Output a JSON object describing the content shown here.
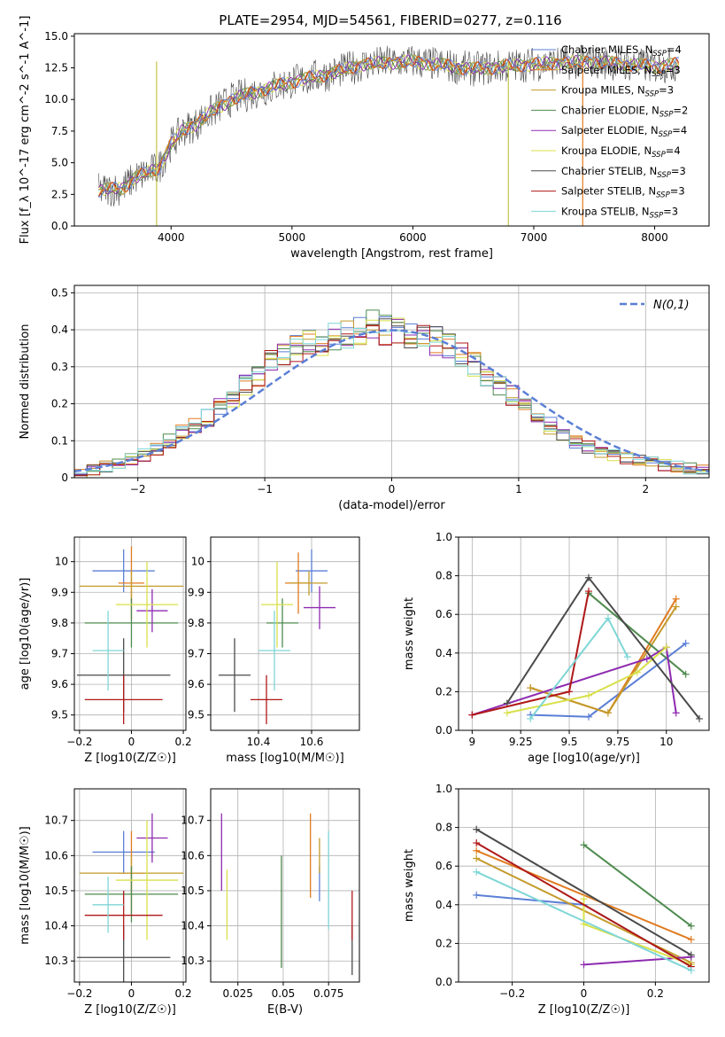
{
  "figure_title": "PLATE=2954, MJD=54561, FIBERID=0277, z=0.116",
  "series_names": [
    "Chabrier MILES, N_SSP=4",
    "Salpeter MILES, N_SSP=3",
    "Kroupa MILES, N_SSP=3",
    "Chabrier ELODIE, N_SSP=2",
    "Salpeter ELODIE, N_SSP=4",
    "Kroupa ELODIE, N_SSP=4",
    "Chabrier STELIB, N_SSP=3",
    "Salpeter STELIB, N_SSP=3",
    "Kroupa STELIB, N_SSP=3"
  ],
  "colors": [
    "#5b7fd6",
    "#e07b20",
    "#c49a2a",
    "#4e8b4e",
    "#8e2bb0",
    "#d8e04a",
    "#4a4a4a",
    "#b01818",
    "#7fd6d6"
  ],
  "chart_data": [
    {
      "type": "line",
      "title": "PLATE=2954, MJD=54561, FIBERID=0277, z=0.116",
      "xlabel": "wavelength [Angstrom, rest frame]",
      "ylabel": "Flux [f_λ 10^-17 erg cm^-2 s^-1 A^-1]",
      "xlim": [
        3200,
        8450
      ],
      "ylim": [
        0,
        15.2
      ],
      "xticks": [
        4000,
        5000,
        6000,
        7000,
        8000
      ],
      "yticks": [
        0.0,
        2.5,
        5.0,
        7.5,
        10.0,
        12.5,
        15.0
      ],
      "legend": "upper right",
      "spectrum_trend_x": [
        3400,
        3600,
        3700,
        3800,
        3900,
        4000,
        4100,
        4200,
        4300,
        4500,
        4700,
        5000,
        5300,
        5600,
        6000,
        6500,
        7000,
        7500,
        8000,
        8200
      ],
      "spectrum_trend_y": [
        2.8,
        3.0,
        3.8,
        4.2,
        4.6,
        6.5,
        7.6,
        8.0,
        8.8,
        10.0,
        10.6,
        11.4,
        12.0,
        12.8,
        13.0,
        12.4,
        12.8,
        13.0,
        12.6,
        12.8
      ]
    },
    {
      "type": "step",
      "xlabel": "(data-model)/error",
      "ylabel": "Normed distribution",
      "xlim": [
        -2.5,
        2.5
      ],
      "ylim": [
        0,
        0.52
      ],
      "xticks": [
        -2,
        -1,
        0,
        1,
        2
      ],
      "yticks": [
        0.0,
        0.1,
        0.2,
        0.3,
        0.4,
        0.5
      ],
      "grid": true,
      "legend": "upper right",
      "reference_label": "N(0,1)",
      "bins": [
        -2.5,
        2.5,
        50
      ],
      "histogram_shape": [
        0.01,
        0.02,
        0.03,
        0.04,
        0.05,
        0.06,
        0.08,
        0.1,
        0.12,
        0.14,
        0.16,
        0.19,
        0.22,
        0.25,
        0.28,
        0.31,
        0.33,
        0.35,
        0.36,
        0.37,
        0.38,
        0.39,
        0.4,
        0.42,
        0.4,
        0.4,
        0.39,
        0.38,
        0.37,
        0.35,
        0.33,
        0.31,
        0.28,
        0.25,
        0.22,
        0.19,
        0.16,
        0.14,
        0.12,
        0.1,
        0.08,
        0.07,
        0.06,
        0.05,
        0.045,
        0.04,
        0.035,
        0.03,
        0.025,
        0.02
      ]
    },
    {
      "type": "scatter",
      "xlabel": "Z [log10(Z/Z☉)]",
      "ylabel": "age [log10(age/yr)]",
      "xlim": [
        -0.22,
        0.21
      ],
      "ylim": [
        9.45,
        10.08
      ],
      "xticks": [
        -0.2,
        0.0,
        0.2
      ],
      "yticks": [
        9.5,
        9.6,
        9.7,
        9.8,
        9.9,
        10.0
      ],
      "grid": true,
      "points": [
        {
          "s": 0,
          "x": -0.03,
          "xerr": 0.12,
          "y": 9.97,
          "yerr": 0.07
        },
        {
          "s": 1,
          "x": 0.0,
          "xerr": 0.05,
          "y": 9.93,
          "yerr": 0.12
        },
        {
          "s": 2,
          "x": 0.0,
          "xerr": 0.2,
          "y": 9.92,
          "yerr": 0.05
        },
        {
          "s": 3,
          "x": 0.0,
          "xerr": 0.18,
          "y": 9.8,
          "yerr": 0.08
        },
        {
          "s": 4,
          "x": 0.08,
          "xerr": 0.06,
          "y": 9.84,
          "yerr": 0.07
        },
        {
          "s": 5,
          "x": 0.06,
          "xerr": 0.12,
          "y": 9.86,
          "yerr": 0.14
        },
        {
          "s": 6,
          "x": -0.03,
          "xerr": 0.18,
          "y": 9.63,
          "yerr": 0.12
        },
        {
          "s": 7,
          "x": -0.03,
          "xerr": 0.15,
          "y": 9.55,
          "yerr": 0.08
        },
        {
          "s": 8,
          "x": -0.09,
          "xerr": 0.06,
          "y": 9.71,
          "yerr": 0.13
        }
      ]
    },
    {
      "type": "scatter",
      "xlabel": "mass [log10(M/M☉)]",
      "ylabel": "",
      "xlim": [
        10.22,
        10.78
      ],
      "ylim": [
        9.45,
        10.08
      ],
      "xticks": [
        10.4,
        10.6
      ],
      "yticks": [
        9.5,
        9.6,
        9.7,
        9.8,
        9.9,
        10.0
      ],
      "grid": true,
      "points": [
        {
          "s": 0,
          "x": 10.6,
          "xerr": 0.06,
          "y": 9.97,
          "yerr": 0.07
        },
        {
          "s": 1,
          "x": 10.55,
          "xerr": 0.05,
          "y": 9.93,
          "yerr": 0.1
        },
        {
          "s": 2,
          "x": 10.59,
          "xerr": 0.07,
          "y": 9.93,
          "yerr": 0.04
        },
        {
          "s": 3,
          "x": 10.49,
          "xerr": 0.06,
          "y": 9.8,
          "yerr": 0.08
        },
        {
          "s": 4,
          "x": 10.63,
          "xerr": 0.06,
          "y": 9.85,
          "yerr": 0.07
        },
        {
          "s": 5,
          "x": 10.47,
          "xerr": 0.06,
          "y": 9.86,
          "yerr": 0.14
        },
        {
          "s": 6,
          "x": 10.31,
          "xerr": 0.06,
          "y": 9.63,
          "yerr": 0.12
        },
        {
          "s": 7,
          "x": 10.43,
          "xerr": 0.06,
          "y": 9.55,
          "yerr": 0.08
        },
        {
          "s": 8,
          "x": 10.46,
          "xerr": 0.06,
          "y": 9.71,
          "yerr": 0.13
        }
      ]
    },
    {
      "type": "line",
      "xlabel": "age [log10(age/yr)]",
      "ylabel": "mass weight",
      "xlim": [
        8.93,
        10.22
      ],
      "ylim": [
        0,
        1
      ],
      "xticks": [
        9.0,
        9.25,
        9.5,
        9.75,
        10.0
      ],
      "yticks": [
        0.0,
        0.2,
        0.4,
        0.6,
        0.8,
        1.0
      ],
      "grid": true,
      "series": [
        {
          "s": 0,
          "x": [
            9.3,
            9.6,
            10.1
          ],
          "y": [
            0.08,
            0.07,
            0.45
          ]
        },
        {
          "s": 1,
          "x": [
            9.3,
            9.7,
            10.05
          ],
          "y": [
            0.22,
            0.09,
            0.68
          ]
        },
        {
          "s": 2,
          "x": [
            9.3,
            9.7,
            10.05
          ],
          "y": [
            0.22,
            0.09,
            0.64
          ]
        },
        {
          "s": 3,
          "x": [
            9.6,
            10.1
          ],
          "y": [
            0.71,
            0.29
          ]
        },
        {
          "s": 4,
          "x": [
            9.0,
            9.9,
            10.0,
            10.05
          ],
          "y": [
            0.08,
            0.37,
            0.43,
            0.09
          ]
        },
        {
          "s": 5,
          "x": [
            9.18,
            9.6,
            9.85,
            10.0
          ],
          "y": [
            0.09,
            0.18,
            0.3,
            0.43
          ]
        },
        {
          "s": 6,
          "x": [
            9.18,
            9.6,
            10.17
          ],
          "y": [
            0.14,
            0.79,
            0.06
          ]
        },
        {
          "s": 7,
          "x": [
            9.0,
            9.5,
            9.6
          ],
          "y": [
            0.08,
            0.2,
            0.72
          ]
        },
        {
          "s": 8,
          "x": [
            9.3,
            9.7,
            9.8
          ],
          "y": [
            0.06,
            0.58,
            0.38
          ]
        }
      ]
    },
    {
      "type": "scatter",
      "xlabel": "Z [log10(Z/Z☉)]",
      "ylabel": "mass [log10(M/M☉)]",
      "xlim": [
        -0.22,
        0.21
      ],
      "ylim": [
        10.24,
        10.79
      ],
      "xticks": [
        -0.2,
        0.0,
        0.2
      ],
      "yticks": [
        10.3,
        10.4,
        10.5,
        10.6,
        10.7
      ],
      "grid": true,
      "points": [
        {
          "s": 0,
          "x": -0.03,
          "xerr": 0.12,
          "y": 10.61,
          "yerr": 0.06
        },
        {
          "s": 1,
          "x": 0.0,
          "xerr": 0.05,
          "y": 10.55,
          "yerr": 0.12
        },
        {
          "s": 2,
          "x": 0.0,
          "xerr": 0.2,
          "y": 10.55,
          "yerr": 0.05
        },
        {
          "s": 3,
          "x": 0.0,
          "xerr": 0.18,
          "y": 10.49,
          "yerr": 0.08
        },
        {
          "s": 4,
          "x": 0.08,
          "xerr": 0.06,
          "y": 10.65,
          "yerr": 0.07
        },
        {
          "s": 5,
          "x": 0.06,
          "xerr": 0.12,
          "y": 10.53,
          "yerr": 0.17
        },
        {
          "s": 6,
          "x": -0.03,
          "xerr": 0.18,
          "y": 10.31,
          "yerr": 0.09
        },
        {
          "s": 7,
          "x": -0.03,
          "xerr": 0.15,
          "y": 10.43,
          "yerr": 0.07
        },
        {
          "s": 8,
          "x": -0.09,
          "xerr": 0.06,
          "y": 10.46,
          "yerr": 0.08
        }
      ]
    },
    {
      "type": "scatter",
      "xlabel": "E(B-V)",
      "ylabel": "",
      "xlim": [
        0.01,
        0.092
      ],
      "ylim": [
        10.24,
        10.79
      ],
      "xticks": [
        0.025,
        0.05,
        0.075
      ],
      "yticks": [
        10.3,
        10.4,
        10.5,
        10.6,
        10.7
      ],
      "grid": true,
      "points": [
        {
          "s": 0,
          "x": 0.07,
          "y": 10.52,
          "yerr": 0.05
        },
        {
          "s": 1,
          "x": 0.065,
          "y": 10.6,
          "yerr": 0.12
        },
        {
          "s": 2,
          "x": 0.07,
          "y": 10.6,
          "yerr": 0.05
        },
        {
          "s": 3,
          "x": 0.049,
          "y": 10.44,
          "yerr": 0.16
        },
        {
          "s": 4,
          "x": 0.016,
          "y": 10.61,
          "yerr": 0.11
        },
        {
          "s": 5,
          "x": 0.019,
          "y": 10.46,
          "yerr": 0.1
        },
        {
          "s": 6,
          "x": 0.088,
          "y": 10.33,
          "yerr": 0.07
        },
        {
          "s": 7,
          "x": 0.088,
          "y": 10.43,
          "yerr": 0.07
        },
        {
          "s": 8,
          "x": 0.075,
          "y": 10.53,
          "yerr": 0.14
        }
      ]
    },
    {
      "type": "line",
      "xlabel": "Z [log10(Z/Z☉)]",
      "ylabel": "mass weight",
      "xlim": [
        -0.35,
        0.35
      ],
      "ylim": [
        0,
        1
      ],
      "xticks": [
        -0.2,
        0.0,
        0.2
      ],
      "yticks": [
        0.0,
        0.2,
        0.4,
        0.6,
        0.8,
        1.0
      ],
      "grid": true,
      "series": [
        {
          "s": 0,
          "x": [
            -0.3,
            0.0,
            0.3
          ],
          "y": [
            0.45,
            0.4,
            0.08
          ]
        },
        {
          "s": 1,
          "x": [
            -0.3,
            0.3
          ],
          "y": [
            0.68,
            0.22
          ]
        },
        {
          "s": 2,
          "x": [
            -0.3,
            0.3
          ],
          "y": [
            0.64,
            0.1
          ]
        },
        {
          "s": 3,
          "x": [
            0.0,
            0.3
          ],
          "y": [
            0.71,
            0.29
          ]
        },
        {
          "s": 4,
          "x": [
            0.0,
            0.3
          ],
          "y": [
            0.09,
            0.13
          ]
        },
        {
          "s": 5,
          "x": [
            0.0,
            0.0,
            0.3
          ],
          "y": [
            0.43,
            0.3,
            0.09
          ]
        },
        {
          "s": 6,
          "x": [
            -0.3,
            0.3
          ],
          "y": [
            0.79,
            0.14
          ]
        },
        {
          "s": 7,
          "x": [
            -0.3,
            0.3
          ],
          "y": [
            0.72,
            0.08
          ]
        },
        {
          "s": 8,
          "x": [
            -0.3,
            0.3
          ],
          "y": [
            0.57,
            0.06
          ]
        }
      ]
    }
  ]
}
